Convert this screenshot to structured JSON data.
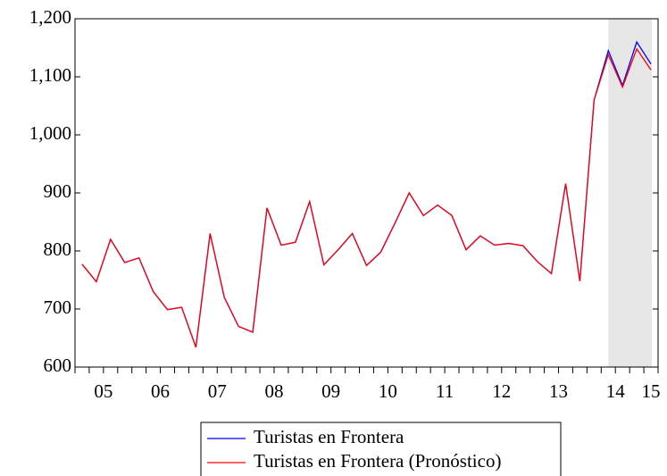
{
  "chart_data": {
    "type": "line",
    "categories": [
      "05",
      null,
      null,
      null,
      "06",
      null,
      null,
      null,
      "07",
      null,
      null,
      null,
      "08",
      null,
      null,
      null,
      "09",
      null,
      null,
      null,
      "10",
      null,
      null,
      null,
      "11",
      null,
      null,
      null,
      "12",
      null,
      null,
      null,
      "13",
      null,
      null,
      null,
      "14",
      null,
      null,
      null,
      "15"
    ],
    "series": [
      {
        "name": "Turistas en Frontera",
        "color": "#0000ff",
        "values": [
          777,
          747,
          820,
          780,
          788,
          730,
          699,
          703,
          634,
          830,
          720,
          670,
          660,
          874,
          810,
          815,
          885,
          776,
          802,
          830,
          775,
          798,
          848,
          900,
          861,
          879,
          861,
          802,
          826,
          810,
          813,
          809,
          782,
          761,
          916,
          748,
          1060,
          1145,
          1085,
          1160,
          1122
        ]
      },
      {
        "name": "Turistas en Frontera (Pronóstico)",
        "color": "#ff0000",
        "values": [
          777,
          747,
          820,
          780,
          788,
          730,
          699,
          703,
          634,
          830,
          720,
          670,
          660,
          874,
          810,
          815,
          885,
          776,
          802,
          830,
          775,
          798,
          848,
          900,
          861,
          879,
          861,
          802,
          826,
          810,
          813,
          809,
          782,
          761,
          916,
          748,
          1060,
          1138,
          1082,
          1148,
          1112
        ]
      }
    ],
    "ylim": [
      600,
      1200
    ],
    "yticks": [
      600,
      700,
      800,
      900,
      {
        "value": 1000,
        "label": "1,000"
      },
      {
        "value": 1100,
        "label": "1,100"
      },
      {
        "value": 1200,
        "label": "1,200"
      }
    ],
    "grid": false,
    "shade": [
      37,
      40
    ],
    "shade_color": "#e6e6e6",
    "legend": "bottom"
  }
}
